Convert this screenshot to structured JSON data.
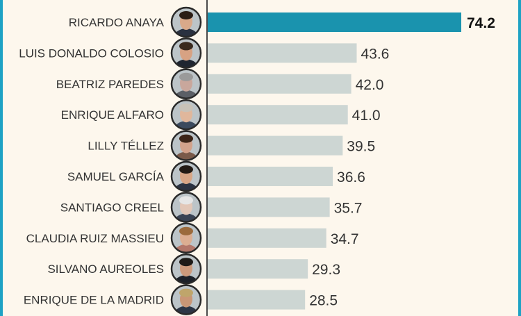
{
  "chart_data": {
    "type": "bar",
    "orientation": "horizontal",
    "title": "",
    "xlabel": "",
    "ylabel": "",
    "xlim": [
      0,
      74.2
    ],
    "grid": false,
    "legend": "none",
    "categories": [
      "RICARDO ANAYA",
      "LUIS DONALDO COLOSIO",
      "BEATRIZ PAREDES",
      "ENRIQUE ALFARO",
      "LILLY TÉLLEZ",
      "SAMUEL GARCÍA",
      "SANTIAGO CREEL",
      "CLAUDIA RUIZ MASSIEU",
      "SILVANO AUREOLES",
      "ENRIQUE DE LA MADRID"
    ],
    "values": [
      74.2,
      43.6,
      42.0,
      41.0,
      39.5,
      36.6,
      35.7,
      34.7,
      29.3,
      28.5
    ],
    "value_labels": [
      "74.2",
      "43.6",
      "42.0",
      "41.0",
      "39.5",
      "36.6",
      "35.7",
      "34.7",
      "29.3",
      "28.5"
    ],
    "highlight_index": 0
  },
  "colors": {
    "background": "#fdf7ed",
    "frame": "#1ea2c4",
    "highlight_bar": "#1a93ae",
    "bar": "#cdd6d3",
    "avatar_ring": "#2a2a2a"
  },
  "icons": [
    "portrait-photo-icon"
  ]
}
